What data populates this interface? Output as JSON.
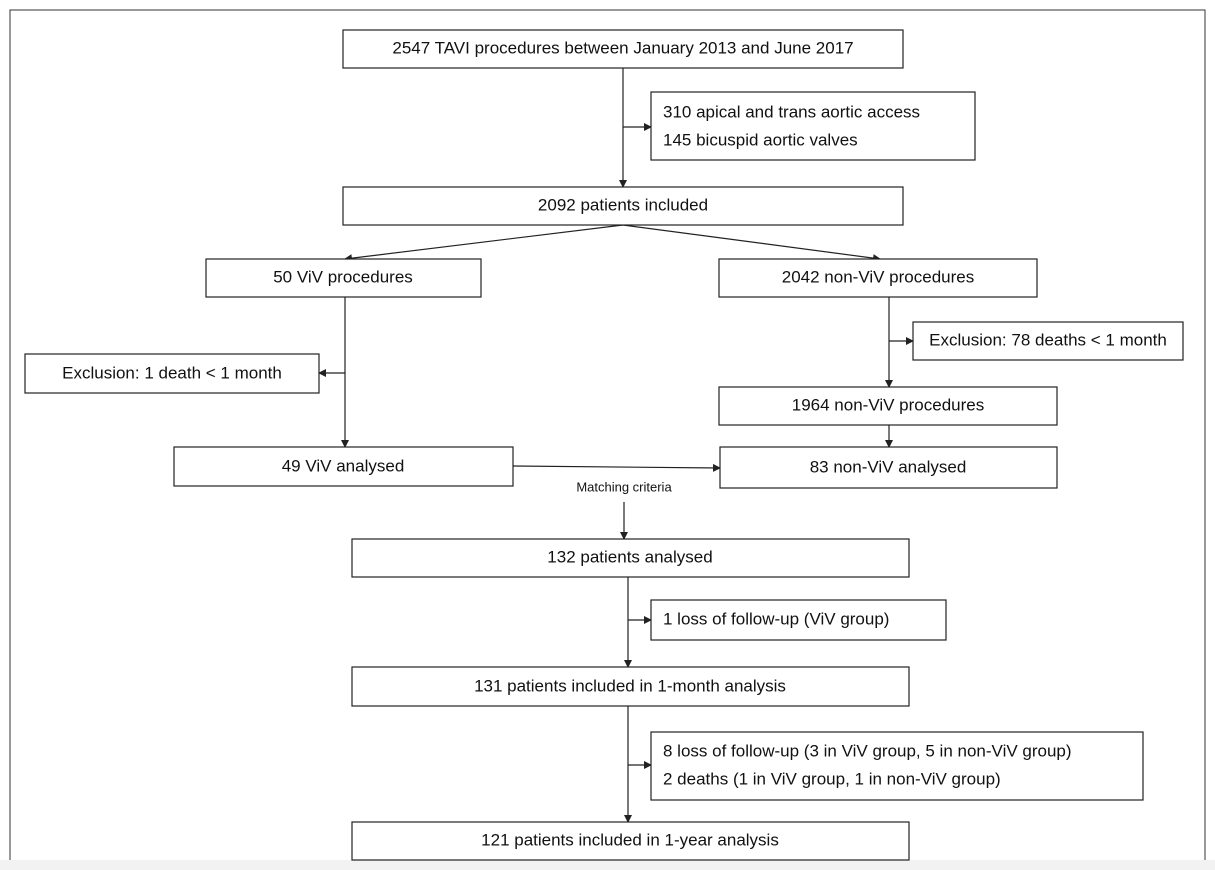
{
  "nodes": [
    {
      "lines": [
        "2547 TAVI procedures between January 2013 and June 2017"
      ]
    },
    {
      "lines": [
        "310 apical and trans aortic access",
        "145 bicuspid aortic valves"
      ]
    },
    {
      "lines": [
        "2092 patients included"
      ]
    },
    {
      "lines": [
        "50 ViV procedures"
      ]
    },
    {
      "lines": [
        "2042 non-ViV procedures"
      ]
    },
    {
      "lines": [
        "Exclusion: 78 deaths < 1 month"
      ]
    },
    {
      "lines": [
        "Exclusion: 1 death < 1 month"
      ]
    },
    {
      "lines": [
        "1964 non-ViV procedures"
      ]
    },
    {
      "lines": [
        "49 ViV analysed"
      ]
    },
    {
      "lines": [
        "83 non-ViV analysed"
      ]
    },
    {
      "lines": [
        "132 patients analysed"
      ]
    },
    {
      "lines": [
        "1 loss of follow-up (ViV group)"
      ]
    },
    {
      "lines": [
        "131 patients included in 1-month analysis"
      ]
    },
    {
      "lines": [
        "8 loss of follow-up (3 in ViV group, 5 in non-ViV group)",
        "2 deaths (1 in ViV group, 1 in non-ViV group)"
      ]
    },
    {
      "lines": [
        "121 patients included in 1-year analysis"
      ]
    }
  ],
  "edge_label": "Matching criteria"
}
